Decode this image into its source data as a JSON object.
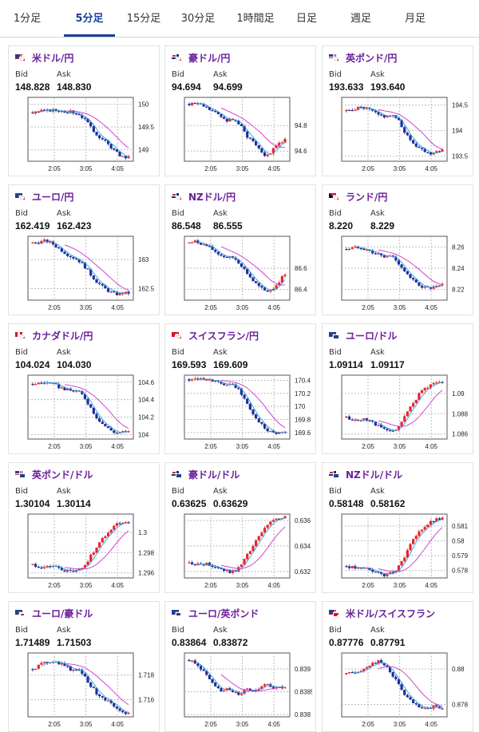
{
  "tabs": [
    {
      "label": "1分足",
      "active": false
    },
    {
      "label": "5分足",
      "active": true
    },
    {
      "label": "15分足",
      "active": false
    },
    {
      "label": "30分足",
      "active": false
    },
    {
      "label": "1時間足",
      "active": false
    },
    {
      "label": "日足",
      "active": false
    },
    {
      "label": "週足",
      "active": false
    },
    {
      "label": "月足",
      "active": false
    }
  ],
  "labels": {
    "bid": "Bid",
    "ask": "Ask"
  },
  "colors": {
    "accent": "#1a3f9c",
    "pair_title": "#6a1f9a",
    "up_candle": "#e8262b",
    "down_candle": "#1c2f9b",
    "moving_average_fast": "#33a0e0",
    "moving_average_slow": "#cc33cc"
  },
  "x_tick_labels": [
    "2:05",
    "3:05",
    "4:05"
  ],
  "pairs": [
    {
      "name": "米ドル/円",
      "flags": [
        "us",
        "jp"
      ],
      "bid": "148.828",
      "ask": "148.830",
      "chart_data": {
        "type": "candlestick",
        "y_ticks": [
          "150",
          "149.5",
          "149"
        ],
        "y_tick_values": [
          150,
          149.5,
          149
        ],
        "ylim": [
          148.75,
          150.15
        ],
        "trend": [
          149.82,
          149.84,
          149.85,
          149.87,
          149.86,
          149.85,
          149.83,
          149.8,
          149.7,
          149.5,
          149.35,
          149.22,
          149.1,
          148.95,
          148.85,
          148.83
        ]
      }
    },
    {
      "name": "豪ドル/円",
      "flags": [
        "au",
        "jp"
      ],
      "bid": "94.694",
      "ask": "94.699",
      "chart_data": {
        "type": "candlestick",
        "y_ticks": [
          "94.8",
          "94.6"
        ],
        "y_tick_values": [
          94.8,
          94.6
        ],
        "ylim": [
          94.52,
          95.02
        ],
        "trend": [
          94.97,
          94.98,
          94.96,
          94.93,
          94.9,
          94.87,
          94.84,
          94.85,
          94.8,
          94.72,
          94.68,
          94.62,
          94.56,
          94.6,
          94.66,
          94.69
        ]
      }
    },
    {
      "name": "英ポンド/円",
      "flags": [
        "gb",
        "jp"
      ],
      "bid": "193.633",
      "ask": "193.640",
      "chart_data": {
        "type": "candlestick",
        "y_ticks": [
          "194.5",
          "194",
          "193.5"
        ],
        "y_tick_values": [
          194.5,
          194,
          193.5
        ],
        "ylim": [
          193.4,
          194.65
        ],
        "trend": [
          194.38,
          194.42,
          194.45,
          194.43,
          194.38,
          194.3,
          194.28,
          194.3,
          194.22,
          194.0,
          193.8,
          193.7,
          193.62,
          193.55,
          193.6,
          193.63
        ]
      }
    },
    {
      "name": "ユーロ/円",
      "flags": [
        "eu",
        "jp"
      ],
      "bid": "162.419",
      "ask": "162.423",
      "chart_data": {
        "type": "candlestick",
        "y_ticks": [
          "163",
          "162.5"
        ],
        "y_tick_values": [
          163,
          162.5
        ],
        "ylim": [
          162.3,
          163.4
        ],
        "trend": [
          163.28,
          163.3,
          163.32,
          163.28,
          163.2,
          163.12,
          163.05,
          163.0,
          162.9,
          162.75,
          162.62,
          162.52,
          162.45,
          162.4,
          162.42,
          162.42
        ]
      }
    },
    {
      "name": "NZドル/円",
      "flags": [
        "nz",
        "jp"
      ],
      "bid": "86.548",
      "ask": "86.555",
      "chart_data": {
        "type": "candlestick",
        "y_ticks": [
          "86.6",
          "86.4"
        ],
        "y_tick_values": [
          86.6,
          86.4
        ],
        "ylim": [
          86.3,
          86.9
        ],
        "trend": [
          86.84,
          86.85,
          86.83,
          86.8,
          86.76,
          86.72,
          86.7,
          86.7,
          86.64,
          86.56,
          86.48,
          86.42,
          86.38,
          86.4,
          86.47,
          86.55
        ]
      }
    },
    {
      "name": "ランド/円",
      "flags": [
        "za",
        "jp"
      ],
      "bid": "8.220",
      "ask": "8.229",
      "chart_data": {
        "type": "candlestick",
        "y_ticks": [
          "8.26",
          "8.24",
          "8.22"
        ],
        "y_tick_values": [
          8.26,
          8.24,
          8.22
        ],
        "ylim": [
          8.21,
          8.27
        ],
        "trend": [
          8.258,
          8.259,
          8.26,
          8.258,
          8.255,
          8.253,
          8.25,
          8.252,
          8.246,
          8.238,
          8.23,
          8.226,
          8.222,
          8.221,
          8.222,
          8.224
        ]
      }
    },
    {
      "name": "カナダドル/円",
      "flags": [
        "ca",
        "jp"
      ],
      "bid": "104.024",
      "ask": "104.030",
      "chart_data": {
        "type": "candlestick",
        "y_ticks": [
          "104.6",
          "104.4",
          "104.2",
          "104"
        ],
        "y_tick_values": [
          104.6,
          104.4,
          104.2,
          104
        ],
        "ylim": [
          103.95,
          104.68
        ],
        "trend": [
          104.58,
          104.59,
          104.6,
          104.58,
          104.55,
          104.52,
          104.5,
          104.5,
          104.44,
          104.32,
          104.2,
          104.12,
          104.06,
          104.02,
          104.03,
          104.03
        ]
      }
    },
    {
      "name": "スイスフラン/円",
      "flags": [
        "ch",
        "jp"
      ],
      "bid": "169.593",
      "ask": "169.609",
      "chart_data": {
        "type": "candlestick",
        "y_ticks": [
          "170.4",
          "170.2",
          "170",
          "169.8",
          "169.6"
        ],
        "y_tick_values": [
          170.4,
          170.2,
          170,
          169.8,
          169.6
        ],
        "ylim": [
          169.5,
          170.48
        ],
        "trend": [
          170.42,
          170.43,
          170.44,
          170.42,
          170.38,
          170.35,
          170.32,
          170.33,
          170.22,
          170.05,
          169.88,
          169.76,
          169.66,
          169.6,
          169.6,
          169.6
        ]
      }
    },
    {
      "name": "ユーロ/ドル",
      "flags": [
        "eu",
        "us"
      ],
      "bid": "1.09114",
      "ask": "1.09117",
      "chart_data": {
        "type": "candlestick",
        "y_ticks": [
          "1.09",
          "1.088",
          "1.086"
        ],
        "y_tick_values": [
          1.09,
          1.088,
          1.086
        ],
        "ylim": [
          1.0855,
          1.0918
        ],
        "trend": [
          1.0876,
          1.0874,
          1.0873,
          1.0875,
          1.0872,
          1.0868,
          1.0864,
          1.0862,
          1.0866,
          1.0876,
          1.0886,
          1.0896,
          1.0904,
          1.0908,
          1.0911,
          1.0911
        ]
      }
    },
    {
      "name": "英ポンド/ドル",
      "flags": [
        "gb",
        "us"
      ],
      "bid": "1.30104",
      "ask": "1.30114",
      "chart_data": {
        "type": "candlestick",
        "y_ticks": [
          "1.3",
          "1.298",
          "1.296"
        ],
        "y_tick_values": [
          1.3,
          1.298,
          1.296
        ],
        "ylim": [
          1.2955,
          1.3018
        ],
        "trend": [
          1.2968,
          1.2966,
          1.2965,
          1.2967,
          1.2965,
          1.2962,
          1.2961,
          1.2962,
          1.2966,
          1.2976,
          1.2986,
          1.2994,
          1.3002,
          1.3008,
          1.301,
          1.301
        ]
      }
    },
    {
      "name": "豪ドル/ドル",
      "flags": [
        "au",
        "us"
      ],
      "bid": "0.63625",
      "ask": "0.63629",
      "chart_data": {
        "type": "candlestick",
        "y_ticks": [
          "0.636",
          "0.634",
          "0.632"
        ],
        "y_tick_values": [
          0.636,
          0.634,
          0.632
        ],
        "ylim": [
          0.6315,
          0.6365
        ],
        "trend": [
          0.6327,
          0.6326,
          0.6325,
          0.6326,
          0.6324,
          0.6322,
          0.632,
          0.632,
          0.6324,
          0.6332,
          0.634,
          0.6348,
          0.6355,
          0.6359,
          0.6362,
          0.6362
        ]
      }
    },
    {
      "name": "NZドル/ドル",
      "flags": [
        "nz",
        "us"
      ],
      "bid": "0.58148",
      "ask": "0.58162",
      "chart_data": {
        "type": "candlestick",
        "y_ticks": [
          "0.581",
          "0.58",
          "0.579",
          "0.578"
        ],
        "y_tick_values": [
          0.581,
          0.58,
          0.579,
          0.578
        ],
        "ylim": [
          0.5775,
          0.5818
        ],
        "trend": [
          0.5783,
          0.5782,
          0.5781,
          0.5782,
          0.578,
          0.5778,
          0.5777,
          0.5778,
          0.5782,
          0.5789,
          0.5797,
          0.5804,
          0.5809,
          0.5812,
          0.5814,
          0.5815
        ]
      }
    },
    {
      "name": "ユーロ/豪ドル",
      "flags": [
        "eu",
        "au"
      ],
      "bid": "1.71489",
      "ask": "1.71503",
      "chart_data": {
        "type": "candlestick",
        "y_ticks": [
          "1.718",
          "1.716"
        ],
        "y_tick_values": [
          1.718,
          1.716
        ],
        "ylim": [
          1.7146,
          1.7198
        ],
        "trend": [
          1.7185,
          1.7188,
          1.719,
          1.7192,
          1.719,
          1.7188,
          1.7184,
          1.7186,
          1.718,
          1.7172,
          1.7165,
          1.7162,
          1.7158,
          1.7152,
          1.7149,
          1.7149
        ]
      }
    },
    {
      "name": "ユーロ/英ポンド",
      "flags": [
        "eu",
        "gb"
      ],
      "bid": "0.83864",
      "ask": "0.83872",
      "chart_data": {
        "type": "candlestick",
        "y_ticks": [
          "0.839",
          "0.8385",
          "0.838"
        ],
        "y_tick_values": [
          0.839,
          0.8385,
          0.838
        ],
        "ylim": [
          0.83795,
          0.83935
        ],
        "trend": [
          0.8392,
          0.8391,
          0.839,
          0.8388,
          0.8386,
          0.8385,
          0.8386,
          0.8385,
          0.8384,
          0.8386,
          0.8385,
          0.8386,
          0.8387,
          0.8386,
          0.8386,
          0.8386
        ]
      }
    },
    {
      "name": "米ドル/スイスフラン",
      "flags": [
        "us",
        "ch"
      ],
      "bid": "0.87776",
      "ask": "0.87791",
      "chart_data": {
        "type": "candlestick",
        "y_ticks": [
          "0.88",
          "0.878"
        ],
        "y_tick_values": [
          0.88,
          0.878
        ],
        "ylim": [
          0.8773,
          0.8809
        ],
        "trend": [
          0.8797,
          0.8798,
          0.8799,
          0.8801,
          0.8803,
          0.8804,
          0.8802,
          0.8798,
          0.8792,
          0.8786,
          0.8782,
          0.8779,
          0.8777,
          0.8778,
          0.8779,
          0.8778
        ]
      }
    }
  ]
}
